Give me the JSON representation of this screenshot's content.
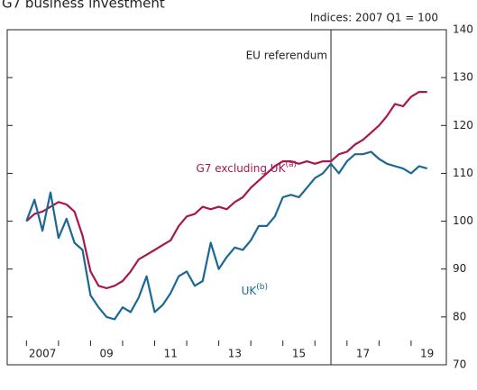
{
  "chart_data": {
    "type": "line",
    "title": "G7 business investment",
    "subtitle": "Indices: 2007 Q1 = 100",
    "x": [
      2007,
      2007.25,
      2007.5,
      2007.75,
      2008,
      2008.25,
      2008.5,
      2008.75,
      2009,
      2009.25,
      2009.5,
      2009.75,
      2010,
      2010.25,
      2010.5,
      2010.75,
      2011,
      2011.25,
      2011.5,
      2011.75,
      2012,
      2012.25,
      2012.5,
      2012.75,
      2013,
      2013.25,
      2013.5,
      2013.75,
      2014,
      2014.25,
      2014.5,
      2014.75,
      2015,
      2015.25,
      2015.5,
      2015.75,
      2016,
      2016.25,
      2016.5,
      2016.75,
      2017,
      2017.25,
      2017.5,
      2017.75,
      2018,
      2018.25,
      2018.5,
      2018.75,
      2019,
      2019.25,
      2019.5
    ],
    "series": [
      {
        "name": "G7 excluding UK",
        "note": "(a)",
        "color": "#a8174d",
        "values": [
          100,
          101.5,
          102,
          103,
          104,
          103.5,
          102,
          97,
          89.5,
          86.5,
          86,
          86.5,
          87.5,
          89.5,
          92,
          93,
          94,
          95,
          96,
          99,
          101,
          101.5,
          103,
          102.5,
          103,
          102.5,
          104,
          105,
          107,
          108.5,
          110,
          111.5,
          112.5,
          112.5,
          112,
          112.5,
          112,
          112.5,
          112.5,
          114,
          114.5,
          116,
          117,
          118.5,
          120,
          122,
          124.5,
          124,
          126,
          127,
          127
        ]
      },
      {
        "name": "UK",
        "note": "(b)",
        "color": "#1b6893",
        "values": [
          100,
          104.5,
          98,
          106,
          96.5,
          100.5,
          95.5,
          94,
          84.5,
          82,
          80,
          79.5,
          82,
          81,
          84,
          88.5,
          81,
          82.5,
          85,
          88.5,
          89.5,
          86.5,
          87.5,
          95.5,
          90,
          92.5,
          94.5,
          94,
          96,
          99,
          99,
          101,
          105,
          105.5,
          105,
          107,
          109,
          110,
          112,
          110,
          112.5,
          114,
          114,
          114.5,
          113,
          112,
          111.5,
          111,
          110,
          111.5,
          111
        ]
      }
    ],
    "xlim": [
      2006.4,
      2020.1
    ],
    "xticks": [
      {
        "value": 2007.5,
        "label": "2007"
      },
      {
        "value": 2009.5,
        "label": "09"
      },
      {
        "value": 2011.5,
        "label": "11"
      },
      {
        "value": 2013.5,
        "label": "13"
      },
      {
        "value": 2015.5,
        "label": "15"
      },
      {
        "value": 2017.5,
        "label": "17"
      },
      {
        "value": 2019.5,
        "label": "19"
      }
    ],
    "ylim": [
      70,
      140
    ],
    "yticks": [
      70,
      80,
      90,
      100,
      110,
      120,
      130,
      140
    ],
    "event": {
      "x": 2016.5,
      "label": "EU referendum"
    }
  }
}
